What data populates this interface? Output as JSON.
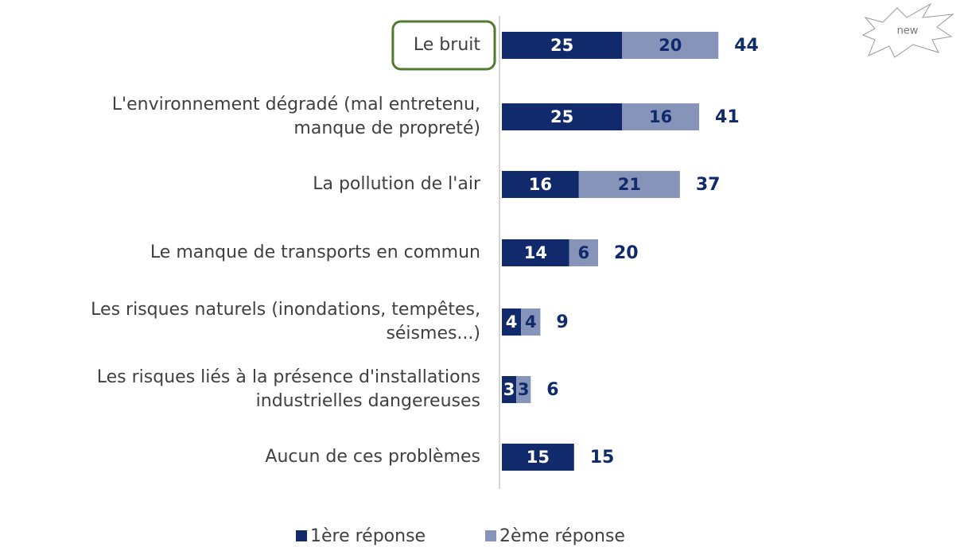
{
  "chart_data": {
    "type": "stacked-bar-horizontal",
    "categories": [
      "Le bruit",
      "L'environnement dégradé (mal entretenu,\nmanque de propreté)",
      "La pollution de l'air",
      "Le manque de transports en commun",
      "Les risques naturels (inondations, tempêtes,\nséismes...)",
      "Les risques liés à la présence d'installations\nindustrielles dangereuses",
      "Aucun de ces problèmes"
    ],
    "series": [
      {
        "name": "1ère réponse",
        "color": "#112a6b",
        "values": [
          25,
          25,
          16,
          14,
          4,
          3,
          15
        ]
      },
      {
        "name": "2ème réponse",
        "color": "#8794b9",
        "values": [
          20,
          16,
          21,
          6,
          4,
          3,
          null
        ]
      }
    ],
    "totals": [
      44,
      41,
      37,
      20,
      9,
      6,
      15
    ],
    "highlight": 0,
    "badge": "new"
  }
}
